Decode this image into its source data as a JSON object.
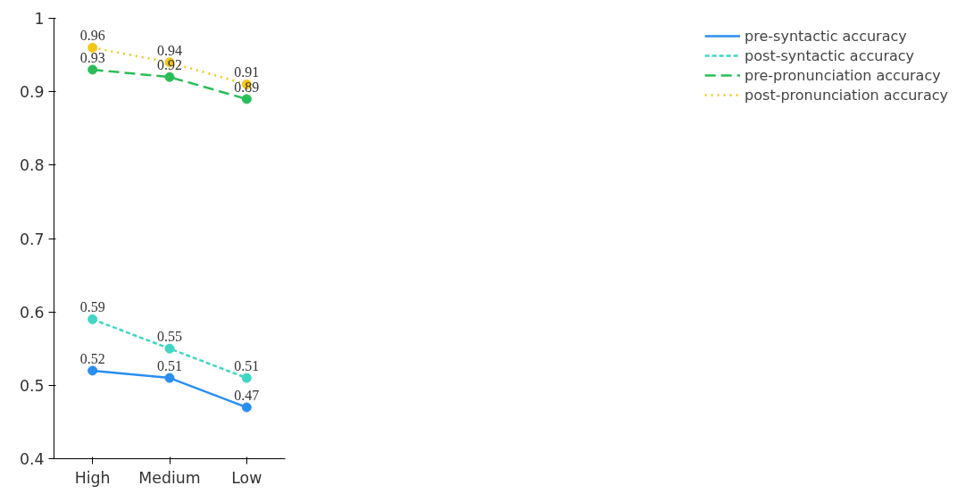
{
  "chart_data": {
    "type": "line",
    "categories": [
      "High",
      "Medium",
      "Low"
    ],
    "series": [
      {
        "name": "pre-syntactic accuracy",
        "color": "#2a8ef0",
        "line_style": "solid",
        "values": [
          0.52,
          0.51,
          0.47
        ]
      },
      {
        "name": "post-syntactic accuracy",
        "color": "#3fd6c4",
        "line_style": "dashed",
        "values": [
          0.59,
          0.55,
          0.51
        ]
      },
      {
        "name": "pre-pronunciation accuracy",
        "color": "#2bbd58",
        "line_style": "longdashed",
        "values": [
          0.93,
          0.92,
          0.89
        ]
      },
      {
        "name": "post-pronunciation accuracy",
        "color": "#f5c518",
        "line_style": "dotted",
        "values": [
          0.96,
          0.94,
          0.91
        ]
      }
    ],
    "ylim": [
      0.4,
      1
    ],
    "yticks": [
      0.4,
      0.5,
      0.6,
      0.7,
      0.8,
      0.9,
      1
    ],
    "grid": false,
    "legend": "right",
    "marker": "circle",
    "data_labels": true
  }
}
